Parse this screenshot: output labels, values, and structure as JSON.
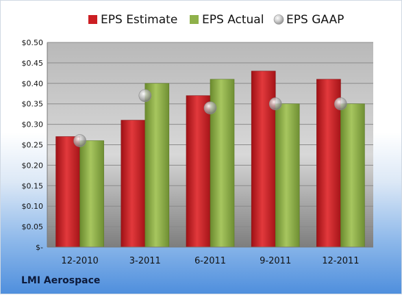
{
  "company": "LMI Aerospace",
  "chart_data": {
    "type": "bar",
    "categories": [
      "12-2010",
      "3-2011",
      "6-2011",
      "9-2011",
      "12-2011"
    ],
    "series": [
      {
        "name": "EPS Estimate",
        "kind": "bar",
        "color": "#cc1f23",
        "values": [
          0.27,
          0.31,
          0.37,
          0.43,
          0.41
        ]
      },
      {
        "name": "EPS Actual",
        "kind": "bar",
        "color": "#8fb14a",
        "values": [
          0.26,
          0.4,
          0.41,
          0.35,
          0.35
        ]
      },
      {
        "name": "EPS GAAP",
        "kind": "marker",
        "color": "#b8b8b8",
        "values": [
          0.26,
          0.37,
          0.34,
          0.35,
          0.35
        ]
      }
    ],
    "yticks": [
      "$-",
      "$0.05",
      "$0.10",
      "$0.15",
      "$0.20",
      "$0.25",
      "$0.30",
      "$0.35",
      "$0.40",
      "$0.45",
      "$0.50"
    ],
    "ylim": [
      0,
      0.5
    ],
    "grid": true,
    "legend": "top"
  }
}
